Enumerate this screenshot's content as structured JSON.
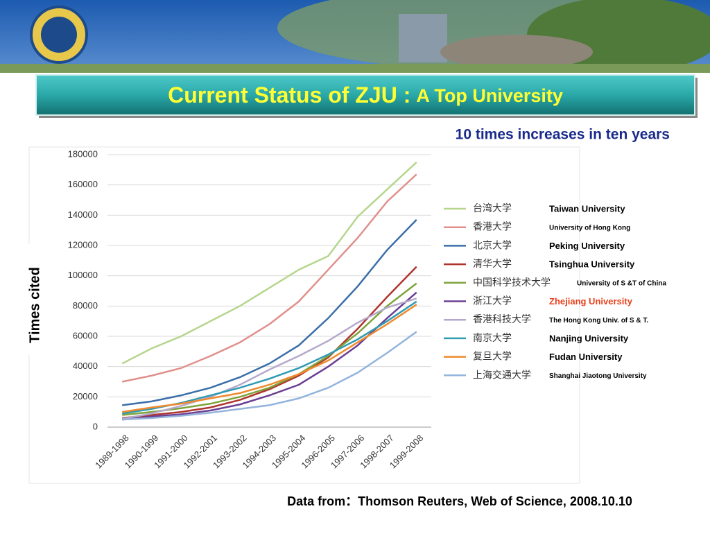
{
  "chart_data": {
    "type": "line",
    "title": "Current Status of ZJU :",
    "title_suffix": "A Top University",
    "subtitle": "10 times increases in ten years",
    "y_label": "Times cited",
    "source": "Data from：Thomson Reuters, Web of Science, 2008.10.10",
    "categories": [
      "1989-1998",
      "1990-1999",
      "1991-2000",
      "1992-2001",
      "1993-2002",
      "1994-2003",
      "1995-2004",
      "1996-2005",
      "1997-2006",
      "1998-2007",
      "1999-2008"
    ],
    "ylim": [
      0,
      180000
    ],
    "yticks": [
      0,
      20000,
      40000,
      60000,
      80000,
      100000,
      120000,
      140000,
      160000,
      180000
    ],
    "grid": true,
    "series": [
      {
        "name": "台湾大学",
        "english": "Taiwan University",
        "color": "#b5d68c",
        "values": [
          42000,
          52000,
          60000,
          70000,
          80000,
          92000,
          104000,
          113000,
          139000,
          157000,
          175000
        ]
      },
      {
        "name": "香港大学",
        "english": "University of Hong Kong",
        "color": "#e0908c",
        "values": [
          30000,
          34000,
          39000,
          47000,
          56000,
          68000,
          83000,
          104000,
          125000,
          149000,
          167000
        ]
      },
      {
        "name": "北京大学",
        "english": "Peking University",
        "color": "#3a6ea8",
        "values": [
          14500,
          17000,
          21000,
          26000,
          33000,
          42000,
          54000,
          72000,
          93000,
          117000,
          137000
        ]
      },
      {
        "name": "清华大学",
        "english": "Tsinghua University",
        "color": "#b0352f",
        "values": [
          6000,
          8000,
          10000,
          13000,
          18000,
          25000,
          34000,
          46000,
          65000,
          86000,
          106000
        ]
      },
      {
        "name": "中国科学技术大学",
        "english": "University of S &T of China",
        "color": "#7ea43a",
        "values": [
          8000,
          10000,
          12500,
          15500,
          20000,
          26000,
          35000,
          47000,
          62000,
          80000,
          95000
        ]
      },
      {
        "name": "浙江大学",
        "english": "Zhejiang University",
        "english_color": "#e8401c",
        "color": "#6b3f93",
        "values": [
          5000,
          7000,
          8500,
          11000,
          15000,
          21000,
          28000,
          40000,
          54000,
          72000,
          89000
        ]
      },
      {
        "name": "香港科技大学",
        "english": "The Hong Kong Univ. of S & T.",
        "color": "#b4a8cc",
        "values": [
          5500,
          9000,
          14000,
          20000,
          28000,
          38000,
          47000,
          57000,
          69000,
          79000,
          85000
        ]
      },
      {
        "name": "南京大学",
        "english": "Nanjing University",
        "color": "#2f9bb3",
        "values": [
          9000,
          12000,
          16000,
          21000,
          26000,
          32000,
          39000,
          48000,
          58000,
          70000,
          83000
        ]
      },
      {
        "name": "复旦大学",
        "english": "Fudan University",
        "color": "#ef8a2e",
        "values": [
          10000,
          13000,
          15500,
          19000,
          22500,
          28000,
          35000,
          44000,
          56000,
          68000,
          81000
        ]
      },
      {
        "name": "上海交通大学",
        "english": "Shanghai Jiaotong University",
        "color": "#94b4dc",
        "values": [
          5000,
          6000,
          7500,
          9500,
          12000,
          14500,
          19000,
          26000,
          36000,
          49000,
          63000
        ]
      }
    ]
  }
}
